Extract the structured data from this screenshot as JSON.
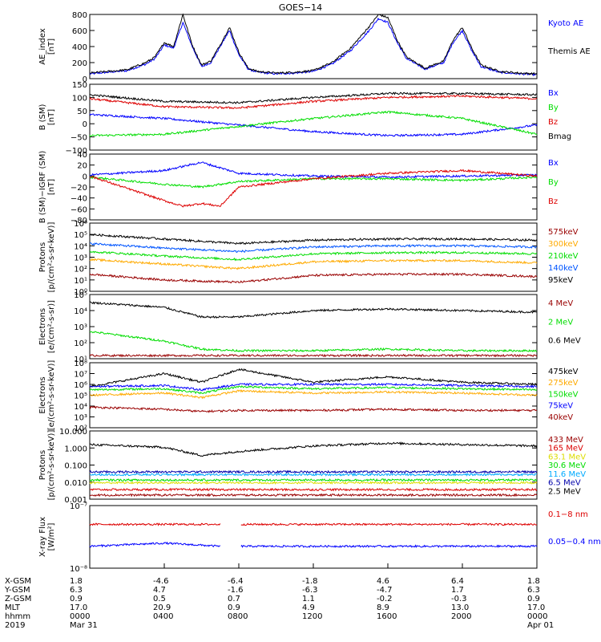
{
  "title": "GOES−14",
  "time_axis": {
    "start": "2019-03-31T00:00",
    "end": "2019-04-01T00:00",
    "tick_hours": [
      0,
      4,
      8,
      12,
      16,
      20,
      24
    ],
    "rows": [
      {
        "label": "X-GSM",
        "values": [
          "1.8",
          "-4.6",
          "-6.4",
          "-1.8",
          "4.6",
          "6.4",
          "1.8"
        ]
      },
      {
        "label": "Y-GSM",
        "values": [
          "6.3",
          "4.7",
          "-1.6",
          "-6.3",
          "-4.7",
          "1.7",
          "6.3"
        ]
      },
      {
        "label": "Z-GSM",
        "values": [
          "0.9",
          "0.5",
          "0.7",
          "1.1",
          "-0.2",
          "-0.3",
          "0.9"
        ]
      },
      {
        "label": "MLT",
        "values": [
          "17.0",
          "20.9",
          "0.9",
          "4.9",
          "8.9",
          "13.0",
          "17.0"
        ]
      },
      {
        "label": "hhmm",
        "values": [
          "0000",
          "0400",
          "0800",
          "1200",
          "1600",
          "2000",
          "0000"
        ]
      },
      {
        "label": "2019",
        "values": [
          "Mar 31",
          "",
          "",
          "",
          "",
          "",
          "Apr 01"
        ]
      }
    ]
  },
  "colors": {
    "black": "#000000",
    "blue": "#0000ff",
    "green": "#00dd00",
    "red": "#dd0000",
    "orange": "#ffaa00",
    "darkred": "#990000",
    "skyblue": "#00aaff",
    "yellow": "#dddd00",
    "navy": "#0000aa",
    "purple": "#660099"
  },
  "chart_data": [
    {
      "type": "line",
      "ylabel": "AE_index\n[nT]",
      "ylim": [
        0,
        800
      ],
      "yticks": [
        "0",
        "200",
        "400",
        "600",
        "800"
      ],
      "log": false,
      "series": [
        {
          "name": "Kyoto AE",
          "color": "#0000ff",
          "x": [
            0,
            1,
            2,
            3,
            3.5,
            4,
            4.5,
            5,
            5.5,
            6,
            6.5,
            7,
            7.5,
            8,
            8.5,
            9,
            10,
            11,
            12,
            13,
            14,
            15,
            15.5,
            16,
            16.5,
            17,
            18,
            19,
            19.5,
            20,
            20.5,
            21,
            22,
            23,
            24
          ],
          "values": [
            60,
            80,
            100,
            180,
            250,
            420,
            380,
            700,
            400,
            150,
            200,
            400,
            600,
            300,
            120,
            80,
            60,
            70,
            90,
            180,
            350,
            600,
            750,
            700,
            450,
            250,
            120,
            200,
            450,
            600,
            350,
            150,
            80,
            60,
            50
          ]
        },
        {
          "name": "Themis AE",
          "color": "#000000",
          "x": [
            0,
            1,
            2,
            3,
            3.5,
            4,
            4.5,
            5,
            5.5,
            6,
            6.5,
            7,
            7.5,
            8,
            8.5,
            9,
            10,
            11,
            12,
            13,
            14,
            15,
            15.5,
            16,
            16.5,
            17,
            18,
            19,
            19.5,
            20,
            20.5,
            21,
            22,
            23,
            24
          ],
          "values": [
            70,
            90,
            110,
            200,
            270,
            450,
            400,
            800,
            420,
            170,
            220,
            420,
            640,
            330,
            130,
            90,
            70,
            80,
            100,
            200,
            380,
            650,
            800,
            760,
            480,
            270,
            130,
            220,
            480,
            640,
            380,
            170,
            90,
            70,
            60
          ]
        }
      ]
    },
    {
      "type": "line",
      "ylabel": "B (SM)\n[nT]",
      "ylim": [
        -100,
        150
      ],
      "yticks": [
        "−100",
        "−50",
        "0",
        "50",
        "100",
        "150"
      ],
      "log": false,
      "series": [
        {
          "name": "Bx",
          "color": "#0000ff",
          "x": [
            0,
            4,
            8,
            12,
            16,
            20,
            24
          ],
          "values": [
            35,
            20,
            -5,
            -30,
            -45,
            -40,
            -5
          ]
        },
        {
          "name": "By",
          "color": "#00dd00",
          "x": [
            0,
            4,
            8,
            12,
            16,
            20,
            24
          ],
          "values": [
            -45,
            -40,
            -10,
            20,
            45,
            20,
            -40
          ]
        },
        {
          "name": "Bz",
          "color": "#dd0000",
          "x": [
            0,
            4,
            8,
            12,
            16,
            20,
            24
          ],
          "values": [
            95,
            65,
            60,
            85,
            100,
            105,
            95
          ]
        },
        {
          "name": "Bmag",
          "color": "#000000",
          "x": [
            0,
            4,
            8,
            12,
            16,
            20,
            24
          ],
          "values": [
            110,
            85,
            80,
            100,
            115,
            115,
            110
          ]
        }
      ]
    },
    {
      "type": "line",
      "ylabel": "B (SM)−IGRF (SM)\n[nT]",
      "ylim": [
        -80,
        40
      ],
      "yticks": [
        "−80",
        "−60",
        "−40",
        "−20",
        "0",
        "20",
        "40"
      ],
      "log": false,
      "series": [
        {
          "name": "Bx",
          "color": "#0000ff",
          "x": [
            0,
            4,
            6,
            8,
            12,
            16,
            20,
            24
          ],
          "values": [
            2,
            10,
            25,
            5,
            0,
            -2,
            0,
            2
          ]
        },
        {
          "name": "By",
          "color": "#00dd00",
          "x": [
            0,
            4,
            6,
            8,
            12,
            16,
            20,
            24
          ],
          "values": [
            -2,
            -15,
            -20,
            -10,
            -5,
            -5,
            -8,
            -2
          ]
        },
        {
          "name": "Bz",
          "color": "#dd0000",
          "x": [
            0,
            4,
            5,
            6,
            7,
            8,
            12,
            16,
            20,
            24
          ],
          "values": [
            0,
            -45,
            -55,
            -50,
            -55,
            -20,
            -5,
            5,
            10,
            0
          ]
        }
      ]
    },
    {
      "type": "line",
      "ylabel": "Protons\n[p/(cm²-s-sr-keV)]",
      "ylim": [
        0,
        6
      ],
      "yticks": [
        "10⁰",
        "10¹",
        "10²",
        "10³",
        "10⁴",
        "10⁵",
        "10⁶"
      ],
      "log": true,
      "series": [
        {
          "name": "575keV",
          "color": "#990000",
          "x": [
            0,
            4,
            8,
            12,
            16,
            20,
            24
          ],
          "values": [
            1.5,
            1.0,
            0.8,
            1.4,
            1.5,
            1.5,
            1.3
          ]
        },
        {
          "name": "300keV",
          "color": "#ffaa00",
          "x": [
            0,
            4,
            8,
            12,
            16,
            20,
            24
          ],
          "values": [
            2.8,
            2.4,
            2.0,
            2.6,
            2.7,
            2.7,
            2.5
          ]
        },
        {
          "name": "210keV",
          "color": "#00dd00",
          "x": [
            0,
            4,
            8,
            12,
            16,
            20,
            24
          ],
          "values": [
            3.5,
            3.1,
            2.8,
            3.3,
            3.4,
            3.4,
            3.3
          ]
        },
        {
          "name": "140keV",
          "color": "#0055ff",
          "x": [
            0,
            4,
            8,
            12,
            16,
            20,
            24
          ],
          "values": [
            4.2,
            3.8,
            3.5,
            3.9,
            4.0,
            4.0,
            3.9
          ]
        },
        {
          "name": "95keV",
          "color": "#000000",
          "x": [
            0,
            4,
            8,
            12,
            16,
            20,
            24
          ],
          "values": [
            5.0,
            4.6,
            4.2,
            4.5,
            4.6,
            4.6,
            4.5
          ]
        }
      ]
    },
    {
      "type": "line",
      "ylabel": "Electrons\n[e/(cm²-s-sr)]",
      "ylim": [
        1,
        5
      ],
      "yticks": [
        "10¹",
        "10²",
        "10³",
        "10⁴",
        "10⁵"
      ],
      "log": true,
      "series": [
        {
          "name": "4 MeV",
          "color": "#990000",
          "x": [
            0,
            4,
            8,
            12,
            16,
            20,
            24
          ],
          "values": [
            1.2,
            1.2,
            1.2,
            1.2,
            1.2,
            1.2,
            1.2
          ]
        },
        {
          "name": "2 MeV",
          "color": "#00dd00",
          "x": [
            0,
            4,
            6,
            8,
            12,
            16,
            20,
            24
          ],
          "values": [
            2.7,
            2.1,
            1.6,
            1.5,
            1.5,
            1.6,
            1.5,
            1.5
          ]
        },
        {
          "name": "0.6 MeV",
          "color": "#000000",
          "x": [
            0,
            4,
            6,
            8,
            12,
            16,
            20,
            24
          ],
          "values": [
            4.5,
            4.2,
            3.6,
            3.6,
            4.0,
            4.1,
            4.0,
            3.9
          ]
        }
      ]
    },
    {
      "type": "line",
      "ylabel": "Electrons\n[e/(cm²-s-sr-keV)]",
      "ylim": [
        2,
        8
      ],
      "yticks": [
        "10²",
        "10³",
        "10⁴",
        "10⁵",
        "10⁶",
        "10⁷",
        "10⁸"
      ],
      "log": true,
      "series": [
        {
          "name": "475keV",
          "color": "#000000",
          "x": [
            0,
            4,
            6,
            8,
            12,
            16,
            20,
            24
          ],
          "values": [
            5.8,
            7.0,
            6.2,
            7.4,
            6.2,
            6.7,
            6.2,
            6.0
          ]
        },
        {
          "name": "275keV",
          "color": "#ffaa00",
          "x": [
            0,
            4,
            6,
            8,
            12,
            16,
            20,
            24
          ],
          "values": [
            5.0,
            5.2,
            4.8,
            5.4,
            5.2,
            5.3,
            5.2,
            5.0
          ]
        },
        {
          "name": "150keV",
          "color": "#00dd00",
          "x": [
            0,
            4,
            6,
            8,
            12,
            16,
            20,
            24
          ],
          "values": [
            5.5,
            5.6,
            5.2,
            5.8,
            5.6,
            5.7,
            5.6,
            5.5
          ]
        },
        {
          "name": "75keV",
          "color": "#0000ff",
          "x": [
            0,
            4,
            6,
            8,
            12,
            16,
            20,
            24
          ],
          "values": [
            5.8,
            5.9,
            5.5,
            6.0,
            6.0,
            6.0,
            5.9,
            5.8
          ]
        },
        {
          "name": "40keV",
          "color": "#990000",
          "x": [
            0,
            4,
            6,
            8,
            12,
            16,
            20,
            24
          ],
          "values": [
            3.9,
            3.7,
            3.5,
            3.6,
            3.6,
            3.7,
            3.6,
            3.6
          ]
        }
      ]
    },
    {
      "type": "line",
      "ylabel": "Protons\n[p/(cm²-s-sr-keV)]",
      "ylim": [
        -3,
        2
      ],
      "yticks": [
        "0.001",
        "0.010",
        "0.100",
        "1.000",
        "10.000"
      ],
      "log": true,
      "series": [
        {
          "name": "433 MeV",
          "color": "#990000",
          "x": [
            0,
            24
          ],
          "values": [
            -2.7,
            -2.7
          ]
        },
        {
          "name": "165 MeV",
          "color": "#dd0000",
          "x": [
            0,
            24
          ],
          "values": [
            -2.3,
            -2.3
          ]
        },
        {
          "name": "63.1 MeV",
          "color": "#dddd00",
          "x": [
            0,
            24
          ],
          "values": [
            -1.8,
            -1.8
          ]
        },
        {
          "name": "30.6 MeV",
          "color": "#00dd00",
          "x": [
            0,
            24
          ],
          "values": [
            -1.6,
            -1.6
          ]
        },
        {
          "name": "11.6 MeV",
          "color": "#00aaff",
          "x": [
            0,
            24
          ],
          "values": [
            -1.2,
            -1.2
          ]
        },
        {
          "name": "6.5 MeV",
          "color": "#0000aa",
          "x": [
            0,
            24
          ],
          "values": [
            -1.0,
            -1.0
          ]
        },
        {
          "name": "2.5 MeV",
          "color": "#000000",
          "x": [
            0,
            4,
            6,
            8,
            12,
            16,
            20,
            24
          ],
          "values": [
            1.0,
            0.8,
            0.2,
            0.5,
            0.9,
            1.1,
            1.0,
            0.9
          ]
        }
      ]
    },
    {
      "type": "line",
      "ylabel": "X-ray Flux\n[W/m²]",
      "ylim": [
        -8,
        -7
      ],
      "yticks": [
        "10⁻⁸",
        "10⁻⁷"
      ],
      "log": true,
      "series": [
        {
          "name": "0.1−8 nm",
          "color": "#dd0000",
          "x": [
            0,
            4,
            7
          ],
          "values": [
            -7.3,
            -7.3,
            -7.3
          ],
          "gap": [
            7,
            8.1
          ]
        },
        {
          "name": "0.05−0.4 nm",
          "color": "#0000ff",
          "x": [
            0,
            4,
            7
          ],
          "values": [
            -7.65,
            -7.6,
            -7.65
          ],
          "gap": [
            7,
            8.1
          ]
        }
      ]
    }
  ]
}
